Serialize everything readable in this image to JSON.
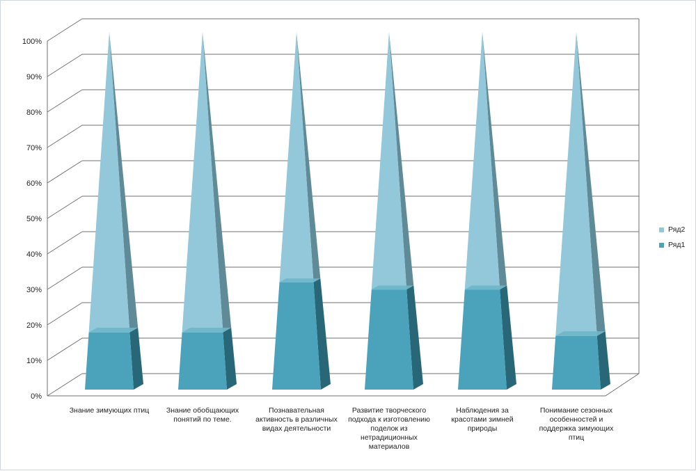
{
  "chart_data": {
    "type": "bar",
    "stacked": true,
    "percent_stacked": true,
    "shape": "pyramid-3d",
    "categories": [
      "Знание зимующих птиц",
      "Знание обобщающих понятий по теме.",
      "Познавательная активность в различных видах деятельности",
      "Развитие творческого подхода к изготовлению поделок из нетрадиционных материалов",
      "Наблюдения за красотами зимней природы",
      "Понимание  сезонных особенностей и поддержка  зимующих птиц"
    ],
    "series": [
      {
        "name": "Ряд1",
        "values": [
          16,
          16,
          30,
          28,
          28,
          15
        ],
        "color": "#4aa3bb"
      },
      {
        "name": "Ряд2",
        "values": [
          84,
          84,
          70,
          72,
          72,
          85
        ],
        "color": "#93c7da"
      }
    ],
    "y_ticks": [
      "0%",
      "10%",
      "20%",
      "30%",
      "40%",
      "50%",
      "60%",
      "70%",
      "80%",
      "90%",
      "100%"
    ],
    "ylim": [
      0,
      100
    ],
    "grid": true,
    "legend_position": "right",
    "legend": [
      "Ряд2",
      "Ряд1"
    ]
  }
}
